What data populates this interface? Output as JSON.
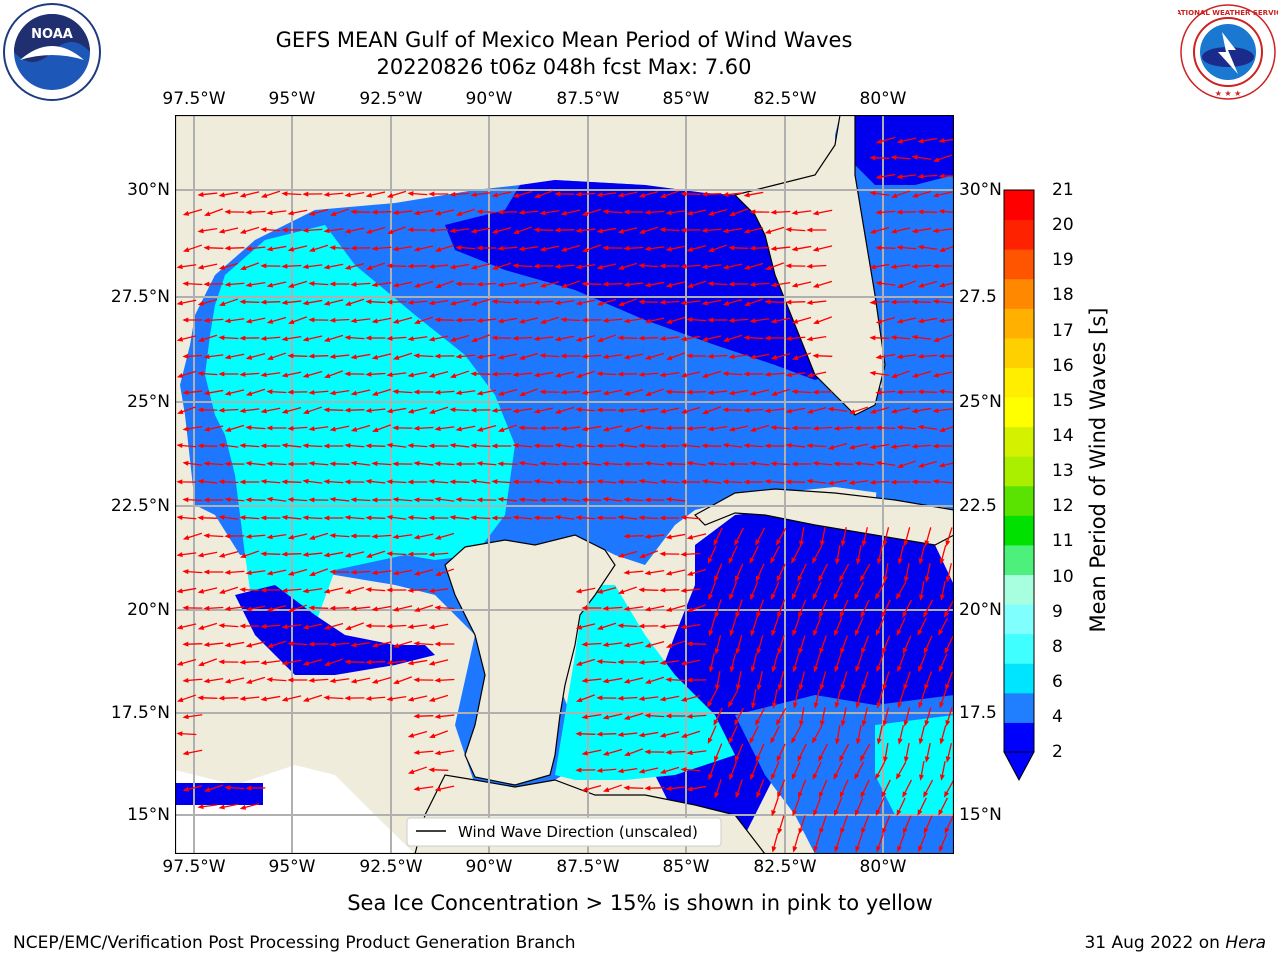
{
  "header": {
    "title_line1": "GEFS MEAN Gulf of Mexico Mean Period of Wind Waves",
    "title_line2": "20220826 t06z 048h fcst   Max: 7.60"
  },
  "logos": {
    "left": "noara-logo",
    "right": "nws-logo",
    "noaa_text": "NOAA",
    "nws_text": "NATIONAL WEATHER SERVICE"
  },
  "map": {
    "lon_ticks": [
      "97.5°W",
      "95°W",
      "92.5°W",
      "90°W",
      "87.5°W",
      "85°W",
      "82.5°W",
      "80°W"
    ],
    "lat_ticks_left": [
      "30°N",
      "27.5°N",
      "25°N",
      "22.5°N",
      "20°N",
      "17.5°N",
      "15°N"
    ],
    "lat_ticks_right": [
      "30°N",
      "27.5",
      "25°N",
      "22.5",
      "20°N",
      "17.5",
      "15°N"
    ],
    "legend_label": "Wind Wave Direction (unscaled)",
    "colors": {
      "land": "#efecdc",
      "ocean_deep": "#0000ee",
      "ocean_mid": "#1e78ff",
      "ocean_light": "#00ffff",
      "ocean_pale": "#80ffff",
      "arrow": "#ff0000",
      "grid": "#b0b0b0"
    }
  },
  "colorbar": {
    "label": "Mean Period of Wind Waves [s]",
    "ticks": [
      "21",
      "20",
      "19",
      "18",
      "17",
      "16",
      "15",
      "14",
      "13",
      "12",
      "11",
      "10",
      "9",
      "8",
      "6",
      "4",
      "2"
    ],
    "colors": [
      "#0000ff",
      "#1f7fff",
      "#00e5ff",
      "#40ffff",
      "#80ffff",
      "#a8ffe0",
      "#4cf07a",
      "#00e100",
      "#5ae300",
      "#aaee00",
      "#d4f200",
      "#ffff00",
      "#ffee00",
      "#ffd000",
      "#ffb000",
      "#ff8800",
      "#ff5500",
      "#ff2200",
      "#ff0000"
    ]
  },
  "footer": {
    "ice_note": "Sea Ice Concentration > 15% is shown in pink to yellow",
    "branch": "NCEP/EMC/Verification Post Processing Product Generation Branch",
    "date": "31 Aug 2022 on ",
    "machine": "Hera"
  }
}
